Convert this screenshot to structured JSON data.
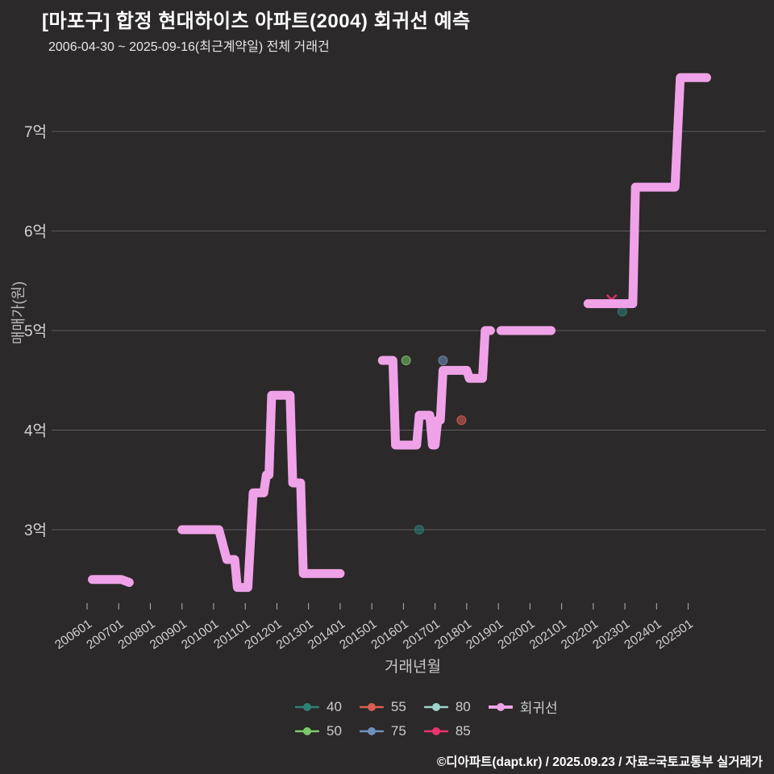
{
  "header": {
    "title": "[마포구] 합정 현대하이츠 아파트(2004) 회귀선 예측",
    "subtitle": "2006-04-30 ~ 2025-09-16(최근계약일) 전체 거래건"
  },
  "footer": {
    "credit": "©디아파트(dapt.kr) / 2025.09.23 / 자료=국토교통부 실거래가"
  },
  "colors": {
    "background": "#2b2929",
    "grid": "#8a8788",
    "tick_text": "#d6d2d3",
    "axis_label": "#bdb9ba",
    "regression_line": "#f0a2e8"
  },
  "chart_data": {
    "type": "line",
    "title": "[마포구] 합정 현대하이츠 아파트(2004) 회귀선 예측",
    "xlabel": "거래년월",
    "ylabel": "매매가(원)",
    "unit_note": "y values in 억원 (100M KRW)",
    "ylim": [
      2.2,
      7.8
    ],
    "grid": "horizontal-only",
    "legend_position": "bottom",
    "y_ticks": [
      {
        "label": "3억",
        "value": 3
      },
      {
        "label": "4억",
        "value": 4
      },
      {
        "label": "5억",
        "value": 5
      },
      {
        "label": "6억",
        "value": 6
      },
      {
        "label": "7억",
        "value": 7
      }
    ],
    "x_ticks": [
      "200601",
      "200701",
      "200801",
      "200901",
      "201001",
      "201101",
      "201201",
      "201301",
      "201401",
      "201501",
      "201601",
      "201701",
      "201801",
      "201901",
      "202001",
      "202101",
      "202201",
      "202301",
      "202401",
      "202501"
    ],
    "legend_rows": [
      [
        "40",
        "55",
        "80",
        "회귀선"
      ],
      [
        "50",
        "75",
        "85"
      ]
    ],
    "series": [
      {
        "name": "40",
        "type": "scatter",
        "marker": "dot",
        "color": "#2e8077",
        "points": [
          [
            "201607",
            3.0
          ],
          [
            "202212",
            5.19
          ]
        ]
      },
      {
        "name": "50",
        "type": "scatter",
        "marker": "dot",
        "color": "#7cc96b",
        "points": [
          [
            "201602",
            4.7
          ]
        ]
      },
      {
        "name": "55",
        "type": "scatter",
        "marker": "dot",
        "color": "#d95f54",
        "points": [
          [
            "201711",
            4.1
          ]
        ]
      },
      {
        "name": "75",
        "type": "scatter",
        "marker": "dot",
        "color": "#7191bd",
        "points": [
          [
            "201704",
            4.7
          ]
        ]
      },
      {
        "name": "80",
        "type": "scatter",
        "marker": "dot",
        "color": "#9fd3cc",
        "points": []
      },
      {
        "name": "85",
        "type": "scatter",
        "marker": "x",
        "color": "#e8336e",
        "points": [
          [
            "202208",
            5.31
          ]
        ]
      },
      {
        "name": "회귀선",
        "type": "line",
        "color": "#f0a2e8",
        "stroke_width": 11,
        "segments": [
          [
            [
              "200603",
              2.5
            ],
            [
              "200702",
              2.5
            ],
            [
              "200705",
              2.47
            ]
          ],
          [
            [
              "200901",
              3.0
            ],
            [
              "201003",
              3.0
            ],
            [
              "201006",
              2.7
            ],
            [
              "201009",
              2.7
            ],
            [
              "201010",
              2.42
            ],
            [
              "201102",
              2.42
            ],
            [
              "201104",
              3.37
            ],
            [
              "201108",
              3.37
            ],
            [
              "201109",
              3.55
            ],
            [
              "201110",
              3.55
            ],
            [
              "201111",
              4.35
            ],
            [
              "201206",
              4.35
            ],
            [
              "201207",
              3.47
            ],
            [
              "201210",
              3.47
            ],
            [
              "201211",
              2.56
            ],
            [
              "201401",
              2.56
            ]
          ],
          [
            [
              "201505",
              4.7
            ],
            [
              "201509",
              4.7
            ],
            [
              "201510",
              3.85
            ],
            [
              "201606",
              3.85
            ],
            [
              "201607",
              4.15
            ],
            [
              "201611",
              4.15
            ],
            [
              "201612",
              3.85
            ],
            [
              "201701",
              3.85
            ],
            [
              "201702",
              4.1
            ],
            [
              "201703",
              4.1
            ],
            [
              "201704",
              4.6
            ],
            [
              "201801",
              4.6
            ],
            [
              "201802",
              4.52
            ],
            [
              "201807",
              4.52
            ],
            [
              "201808",
              5.0
            ],
            [
              "201810",
              5.0
            ]
          ],
          [
            [
              "201902",
              5.0
            ],
            [
              "202009",
              5.0
            ]
          ],
          [
            [
              "202111",
              5.27
            ],
            [
              "202304",
              5.27
            ],
            [
              "202305",
              6.44
            ],
            [
              "202408",
              6.44
            ],
            [
              "202410",
              7.54
            ],
            [
              "202508",
              7.54
            ]
          ]
        ]
      }
    ]
  }
}
